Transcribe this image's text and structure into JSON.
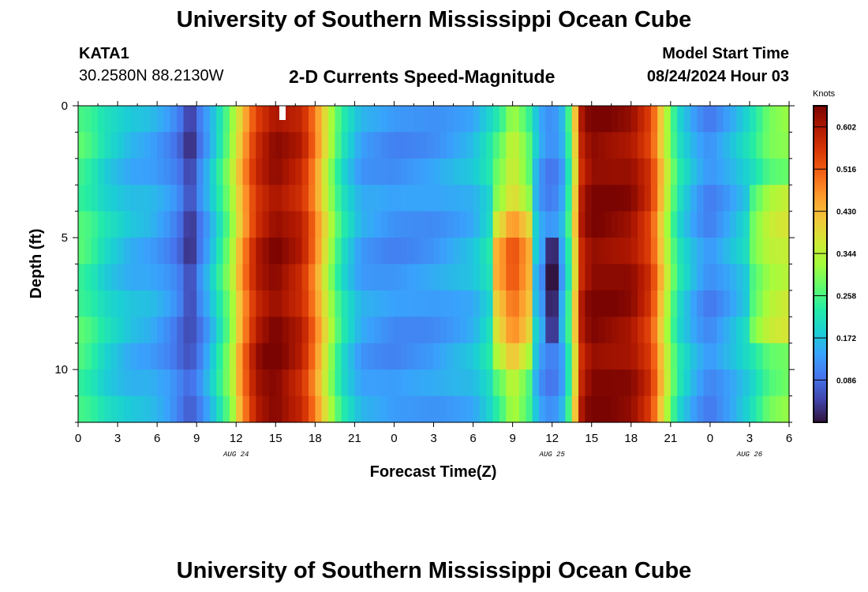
{
  "header": {
    "title": "University of Southern Mississippi Ocean Cube",
    "station_id": "KATA1",
    "coordinates": "30.2580N  88.2130W",
    "subtitle": "2-D Currents Speed-Magnitude",
    "model_start_label": "Model Start Time",
    "model_start_value": "08/24/2024 Hour 03"
  },
  "footer": {
    "title": "University of Southern Mississippi Ocean Cube"
  },
  "colors": {
    "ramp": [
      "#30123b",
      "#4145ab",
      "#4675ed",
      "#39a2fc",
      "#1bcfd4",
      "#24eca6",
      "#61fc6c",
      "#a4fc3b",
      "#d1e834",
      "#f3c63a",
      "#fe9b2d",
      "#f36315",
      "#d93806",
      "#b11901",
      "#7a0402"
    ]
  },
  "chart_data": {
    "type": "heatmap",
    "title": "2-D Currents Speed-Magnitude",
    "xlabel": "Forecast Time(Z)",
    "ylabel": "Depth (ft)",
    "x_hours": [
      0,
      54
    ],
    "ylim": [
      0,
      12
    ],
    "x_tick_labels": [
      "0",
      "3",
      "6",
      "9",
      "12",
      "15",
      "18",
      "21",
      "0",
      "3",
      "6",
      "9",
      "12",
      "15",
      "18",
      "21",
      "0",
      "3",
      "6"
    ],
    "x_tick_hours": [
      0,
      3,
      6,
      9,
      12,
      15,
      18,
      21,
      24,
      27,
      30,
      33,
      36,
      39,
      42,
      45,
      48,
      51,
      54
    ],
    "date_labels": [
      {
        "label": "AUG 24",
        "hour": 12
      },
      {
        "label": "AUG 25",
        "hour": 36
      },
      {
        "label": "AUG 26",
        "hour": 51
      }
    ],
    "y_ticks": [
      {
        "label": "0",
        "depth": 0
      },
      {
        "label": "5",
        "depth": 5
      },
      {
        "label": "10",
        "depth": 10
      }
    ],
    "colorbar": {
      "units": "Knots",
      "range": [
        0,
        0.645
      ],
      "tick_labels": [
        "0.602",
        "0.516",
        "0.430",
        "0.344",
        "0.258",
        "0.172",
        "0.086"
      ],
      "tick_values": [
        0.602,
        0.516,
        0.43,
        0.344,
        0.258,
        0.172,
        0.086
      ]
    },
    "depth_levels": 12,
    "time_step_hours": 0.5,
    "keyframes": [
      {
        "t": 0,
        "v": 0.26
      },
      {
        "t": 1,
        "v": 0.24
      },
      {
        "t": 2,
        "v": 0.2
      },
      {
        "t": 4,
        "v": 0.16
      },
      {
        "t": 5.5,
        "v": 0.15
      },
      {
        "t": 7,
        "v": 0.12
      },
      {
        "t": 8.5,
        "v": 0.06
      },
      {
        "t": 9.5,
        "v": 0.12
      },
      {
        "t": 10.5,
        "v": 0.2
      },
      {
        "t": 11.5,
        "v": 0.3
      },
      {
        "t": 12.5,
        "v": 0.44
      },
      {
        "t": 13.5,
        "v": 0.56
      },
      {
        "t": 15,
        "v": 0.62
      },
      {
        "t": 17,
        "v": 0.58
      },
      {
        "t": 18,
        "v": 0.48
      },
      {
        "t": 19,
        "v": 0.34
      },
      {
        "t": 20,
        "v": 0.22
      },
      {
        "t": 21.5,
        "v": 0.14
      },
      {
        "t": 24,
        "v": 0.12
      },
      {
        "t": 27,
        "v": 0.13
      },
      {
        "t": 30,
        "v": 0.16
      },
      {
        "t": 32,
        "v": 0.24
      },
      {
        "t": 33,
        "v": 0.4
      },
      {
        "t": 34,
        "v": 0.28
      },
      {
        "t": 35,
        "v": 0.14
      },
      {
        "t": 36,
        "v": 0.1
      },
      {
        "t": 37,
        "v": 0.16
      },
      {
        "t": 37.6,
        "v": 0.34
      },
      {
        "t": 38.2,
        "v": 0.58
      },
      {
        "t": 39,
        "v": 0.64
      },
      {
        "t": 42,
        "v": 0.62
      },
      {
        "t": 43.5,
        "v": 0.55
      },
      {
        "t": 44.5,
        "v": 0.38
      },
      {
        "t": 45.5,
        "v": 0.22
      },
      {
        "t": 47,
        "v": 0.14
      },
      {
        "t": 48,
        "v": 0.11
      },
      {
        "t": 49.5,
        "v": 0.15
      },
      {
        "t": 51,
        "v": 0.2
      },
      {
        "t": 52.5,
        "v": 0.28
      },
      {
        "t": 54,
        "v": 0.3
      }
    ]
  }
}
